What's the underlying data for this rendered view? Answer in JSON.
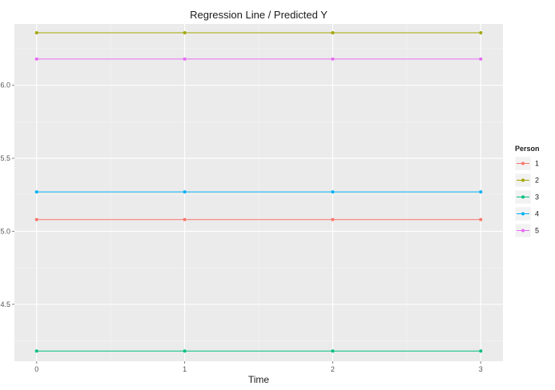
{
  "chart_data": {
    "type": "line",
    "title": "Regression Line / Predicted Y",
    "xlabel": "Time",
    "ylabel": "",
    "x": [
      0,
      1,
      2,
      3
    ],
    "x_ticks": [
      "0",
      "1",
      "2",
      "3"
    ],
    "xlim": [
      -0.15,
      3.15
    ],
    "y_ticks": [
      "4.5",
      "5.0",
      "5.5",
      "6.0"
    ],
    "y_tick_values": [
      4.5,
      5.0,
      5.5,
      6.0
    ],
    "ylim": [
      4.11,
      6.42
    ],
    "grid": true,
    "legend": {
      "title": "Person",
      "position": "right"
    },
    "series": [
      {
        "name": "1",
        "color": "#F8766D",
        "values": [
          5.08,
          5.08,
          5.08,
          5.08
        ]
      },
      {
        "name": "2",
        "color": "#A3A500",
        "values": [
          6.36,
          6.36,
          6.36,
          6.36
        ]
      },
      {
        "name": "3",
        "color": "#00BF7D",
        "values": [
          4.18,
          4.18,
          4.18,
          4.18
        ]
      },
      {
        "name": "4",
        "color": "#00B0F6",
        "values": [
          5.27,
          5.27,
          5.27,
          5.27
        ]
      },
      {
        "name": "5",
        "color": "#E76BF3",
        "values": [
          6.18,
          6.18,
          6.18,
          6.18
        ]
      }
    ]
  }
}
